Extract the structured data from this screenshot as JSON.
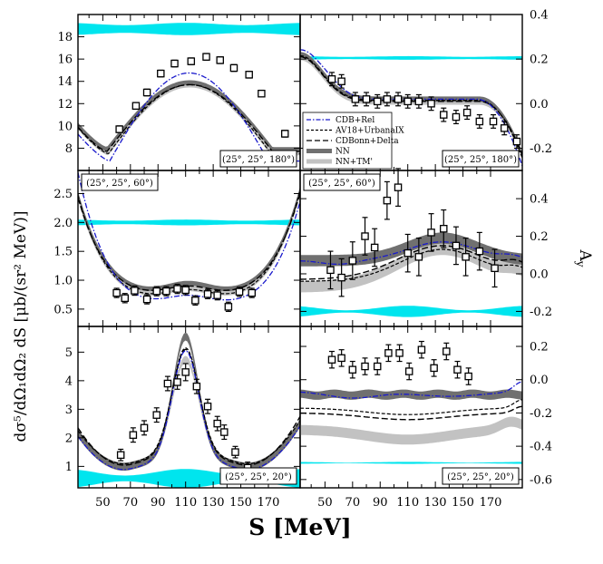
{
  "figure": {
    "xlabel": "S [MeV]",
    "ylabel_left": "dσ⁵/dΩ₁dΩ₂ dS [μb/(sr² MeV)]",
    "ylabel_right": "A_y"
  },
  "legend": [
    {
      "label": "CDB+Rel",
      "color": "#1a1acc",
      "style": "dashdot"
    },
    {
      "label": "AV18+UrbanaIX",
      "color": "#000000",
      "style": "dash-short"
    },
    {
      "label": "CDBonn+Delta",
      "color": "#000000",
      "style": "dash-long"
    },
    {
      "label": "NN",
      "color": "#707070",
      "style": "band"
    },
    {
      "label": "NN+TM'",
      "color": "#c2c2c2",
      "style": "band"
    }
  ],
  "colors": {
    "cdb_rel": "#1a1acc",
    "av18": "#000000",
    "cdbonn_delta": "#000000",
    "nn_band": "#707070",
    "nntm_band": "#c2c2c2",
    "syst_band": "#00e5ee",
    "data": "#000000"
  },
  "chart_data": [
    {
      "id": "cs180",
      "type": "line",
      "panel_label": "(25°, 25°, 180°)",
      "ylabel": "cross section",
      "xlim": [
        32,
        193
      ],
      "ylim": [
        6,
        20
      ],
      "x_ticks": [
        50,
        70,
        90,
        110,
        130,
        150,
        170
      ],
      "y_ticks": [
        8,
        10,
        12,
        14,
        16,
        18
      ],
      "y_tick_labels": [
        "8",
        "10",
        "12",
        "14",
        "16",
        "18"
      ],
      "data_points": [
        {
          "x": 62,
          "y": 9.7,
          "err": 0.3
        },
        {
          "x": 74,
          "y": 11.8,
          "err": 0.3
        },
        {
          "x": 82,
          "y": 13.0,
          "err": 0.3
        },
        {
          "x": 92,
          "y": 14.7,
          "err": 0.3
        },
        {
          "x": 102,
          "y": 15.6,
          "err": 0.3
        },
        {
          "x": 114,
          "y": 15.8,
          "err": 0.3
        },
        {
          "x": 125,
          "y": 16.2,
          "err": 0.3
        },
        {
          "x": 135,
          "y": 15.9,
          "err": 0.3
        },
        {
          "x": 145,
          "y": 15.2,
          "err": 0.3
        },
        {
          "x": 156,
          "y": 14.6,
          "err": 0.3
        },
        {
          "x": 165,
          "y": 12.9,
          "err": 0.3
        },
        {
          "x": 182,
          "y": 9.3,
          "err": 0.3
        }
      ],
      "syst_band": {
        "center": 18.7,
        "half_width_min": 0.35,
        "half_width_max": 0.55
      }
    },
    {
      "id": "ay180",
      "type": "line",
      "panel_label": "(25°, 25°, 180°)",
      "ylabel": "A_y",
      "xlim": [
        32,
        193
      ],
      "ylim": [
        -0.3,
        0.4
      ],
      "x_ticks": [
        50,
        70,
        90,
        110,
        130,
        150,
        170
      ],
      "y_ticks": [
        -0.2,
        0.0,
        0.2,
        0.4
      ],
      "y_tick_labels": [
        "-0.2",
        "0.0",
        "0.2",
        "0.4"
      ],
      "data_points": [
        {
          "x": 55,
          "y": 0.11,
          "err": 0.03
        },
        {
          "x": 62,
          "y": 0.1,
          "err": 0.03
        },
        {
          "x": 72,
          "y": 0.02,
          "err": 0.03
        },
        {
          "x": 80,
          "y": 0.02,
          "err": 0.03
        },
        {
          "x": 88,
          "y": 0.01,
          "err": 0.03
        },
        {
          "x": 95,
          "y": 0.02,
          "err": 0.03
        },
        {
          "x": 103,
          "y": 0.02,
          "err": 0.03
        },
        {
          "x": 110,
          "y": 0.01,
          "err": 0.03
        },
        {
          "x": 118,
          "y": 0.01,
          "err": 0.03
        },
        {
          "x": 127,
          "y": 0.0,
          "err": 0.03
        },
        {
          "x": 136,
          "y": -0.05,
          "err": 0.03
        },
        {
          "x": 145,
          "y": -0.06,
          "err": 0.03
        },
        {
          "x": 153,
          "y": -0.04,
          "err": 0.03
        },
        {
          "x": 162,
          "y": -0.08,
          "err": 0.03
        },
        {
          "x": 172,
          "y": -0.08,
          "err": 0.03
        },
        {
          "x": 180,
          "y": -0.11,
          "err": 0.03
        },
        {
          "x": 189,
          "y": -0.17,
          "err": 0.03
        }
      ],
      "syst_band": {
        "center": 0.205,
        "half_width_min": 0.005,
        "half_width_max": 0.008
      }
    },
    {
      "id": "cs60",
      "type": "line",
      "panel_label": "(25°, 25°, 60°)",
      "ylabel": "cross section",
      "xlim": [
        32,
        193
      ],
      "ylim": [
        0.2,
        2.9
      ],
      "x_ticks": [
        50,
        70,
        90,
        110,
        130,
        150,
        170
      ],
      "y_ticks": [
        0.5,
        1.0,
        1.5,
        2.0,
        2.5
      ],
      "y_tick_labels": [
        "0.5",
        "1.0",
        "1.5",
        "2.0",
        "2.5"
      ],
      "data_points": [
        {
          "x": 60,
          "y": 0.78,
          "err": 0.08
        },
        {
          "x": 66,
          "y": 0.69,
          "err": 0.08
        },
        {
          "x": 73,
          "y": 0.82,
          "err": 0.08
        },
        {
          "x": 82,
          "y": 0.67,
          "err": 0.08
        },
        {
          "x": 89,
          "y": 0.81,
          "err": 0.08
        },
        {
          "x": 96,
          "y": 0.81,
          "err": 0.08
        },
        {
          "x": 104,
          "y": 0.85,
          "err": 0.08
        },
        {
          "x": 110,
          "y": 0.83,
          "err": 0.08
        },
        {
          "x": 117,
          "y": 0.65,
          "err": 0.08
        },
        {
          "x": 126,
          "y": 0.76,
          "err": 0.08
        },
        {
          "x": 133,
          "y": 0.74,
          "err": 0.08
        },
        {
          "x": 141,
          "y": 0.54,
          "err": 0.08
        },
        {
          "x": 149,
          "y": 0.8,
          "err": 0.08
        },
        {
          "x": 158,
          "y": 0.78,
          "err": 0.08
        }
      ],
      "syst_band": {
        "center": 2.0,
        "half_width_min": 0.03,
        "half_width_max": 0.05
      }
    },
    {
      "id": "ay60",
      "type": "line",
      "panel_label": "(25°, 25°, 60°)",
      "ylabel": "A_y",
      "xlim": [
        32,
        193
      ],
      "ylim": [
        -0.28,
        0.55
      ],
      "x_ticks": [
        50,
        70,
        90,
        110,
        130,
        150,
        170
      ],
      "y_ticks": [
        -0.2,
        0.0,
        0.2,
        0.4
      ],
      "y_tick_labels": [
        "-0.2",
        "0.0",
        "0.2",
        "0.4"
      ],
      "data_points": [
        {
          "x": 54,
          "y": 0.02,
          "err": 0.1
        },
        {
          "x": 62,
          "y": -0.02,
          "err": 0.1
        },
        {
          "x": 70,
          "y": 0.07,
          "err": 0.1
        },
        {
          "x": 79,
          "y": 0.2,
          "err": 0.1
        },
        {
          "x": 86,
          "y": 0.14,
          "err": 0.1
        },
        {
          "x": 95,
          "y": 0.39,
          "err": 0.1
        },
        {
          "x": 103,
          "y": 0.46,
          "err": 0.1
        },
        {
          "x": 110,
          "y": 0.11,
          "err": 0.1
        },
        {
          "x": 118,
          "y": 0.09,
          "err": 0.1
        },
        {
          "x": 127,
          "y": 0.22,
          "err": 0.1
        },
        {
          "x": 136,
          "y": 0.24,
          "err": 0.1
        },
        {
          "x": 145,
          "y": 0.15,
          "err": 0.1
        },
        {
          "x": 152,
          "y": 0.09,
          "err": 0.1
        },
        {
          "x": 162,
          "y": 0.12,
          "err": 0.1
        },
        {
          "x": 173,
          "y": 0.03,
          "err": 0.1
        }
      ],
      "syst_band": {
        "center": -0.2,
        "half_width_min": 0.006,
        "half_width_max": 0.03
      }
    },
    {
      "id": "cs20",
      "type": "line",
      "panel_label": "(25°, 25°, 20°)",
      "ylabel": "cross section",
      "xlim": [
        32,
        193
      ],
      "ylim": [
        0.25,
        5.9
      ],
      "x_ticks": [
        50,
        70,
        90,
        110,
        130,
        150,
        170
      ],
      "y_ticks": [
        1,
        2,
        3,
        4,
        5
      ],
      "y_tick_labels": [
        "1",
        "2",
        "3",
        "4",
        "5"
      ],
      "data_points": [
        {
          "x": 63,
          "y": 1.4,
          "err": 0.2
        },
        {
          "x": 72,
          "y": 2.1,
          "err": 0.25
        },
        {
          "x": 80,
          "y": 2.35,
          "err": 0.25
        },
        {
          "x": 89,
          "y": 2.8,
          "err": 0.25
        },
        {
          "x": 97,
          "y": 3.9,
          "err": 0.25
        },
        {
          "x": 104,
          "y": 3.95,
          "err": 0.25
        },
        {
          "x": 110,
          "y": 4.3,
          "err": 0.3
        },
        {
          "x": 118,
          "y": 3.8,
          "err": 0.25
        },
        {
          "x": 126,
          "y": 3.1,
          "err": 0.25
        },
        {
          "x": 133,
          "y": 2.5,
          "err": 0.25
        },
        {
          "x": 138,
          "y": 2.2,
          "err": 0.25
        },
        {
          "x": 146,
          "y": 1.5,
          "err": 0.2
        },
        {
          "x": 155,
          "y": 0.95,
          "err": 0.2
        }
      ],
      "syst_band": {
        "center": 0.58,
        "half_width_min": 0.1,
        "half_width_max": 0.33
      }
    },
    {
      "id": "ay20",
      "type": "line",
      "panel_label": "(25°, 25°, 20°)",
      "ylabel": "A_y",
      "xlim": [
        32,
        193
      ],
      "ylim": [
        -0.65,
        0.32
      ],
      "x_ticks": [
        50,
        70,
        90,
        110,
        130,
        150,
        170
      ],
      "y_ticks": [
        -0.6,
        -0.4,
        -0.2,
        0.0,
        0.2
      ],
      "y_tick_labels": [
        "-0.6",
        "-0.4",
        "-0.2",
        "0.0",
        "0.2"
      ],
      "data_points": [
        {
          "x": 55,
          "y": 0.12,
          "err": 0.05
        },
        {
          "x": 62,
          "y": 0.13,
          "err": 0.05
        },
        {
          "x": 70,
          "y": 0.06,
          "err": 0.05
        },
        {
          "x": 79,
          "y": 0.08,
          "err": 0.05
        },
        {
          "x": 88,
          "y": 0.08,
          "err": 0.05
        },
        {
          "x": 96,
          "y": 0.16,
          "err": 0.05
        },
        {
          "x": 104,
          "y": 0.16,
          "err": 0.05
        },
        {
          "x": 111,
          "y": 0.05,
          "err": 0.05
        },
        {
          "x": 120,
          "y": 0.18,
          "err": 0.05
        },
        {
          "x": 129,
          "y": 0.07,
          "err": 0.05
        },
        {
          "x": 138,
          "y": 0.17,
          "err": 0.05
        },
        {
          "x": 146,
          "y": 0.06,
          "err": 0.05
        },
        {
          "x": 154,
          "y": 0.02,
          "err": 0.05
        }
      ],
      "syst_band": {
        "center": -0.5,
        "half_width_min": 0.002,
        "half_width_max": 0.006
      }
    }
  ]
}
